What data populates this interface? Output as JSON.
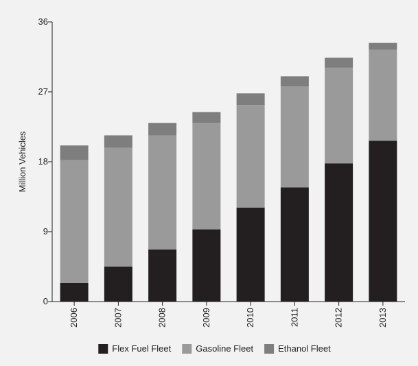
{
  "chart_data": {
    "type": "bar",
    "stacked": true,
    "title": "",
    "xlabel": "",
    "ylabel": "Million Vehicles",
    "ylim": [
      0,
      36
    ],
    "yticks": [
      0,
      9,
      18,
      27,
      36
    ],
    "grid": false,
    "legend_position": "bottom",
    "categories": [
      "2006",
      "2007",
      "2008",
      "2009",
      "2010",
      "2011",
      "2012",
      "2013"
    ],
    "series": [
      {
        "name": "Flex Fuel Fleet",
        "color": "#231f20",
        "values": [
          2.4,
          4.5,
          6.7,
          9.3,
          12.1,
          14.7,
          17.8,
          20.7
        ]
      },
      {
        "name": "Gasoline Fleet",
        "color": "#9a9a9a",
        "values": [
          15.8,
          15.3,
          14.7,
          13.7,
          13.2,
          13.0,
          12.3,
          11.7
        ]
      },
      {
        "name": "Ethanol Fleet",
        "color": "#7e7e7e",
        "values": [
          1.9,
          1.6,
          1.6,
          1.4,
          1.5,
          1.3,
          1.3,
          0.9
        ]
      }
    ]
  }
}
